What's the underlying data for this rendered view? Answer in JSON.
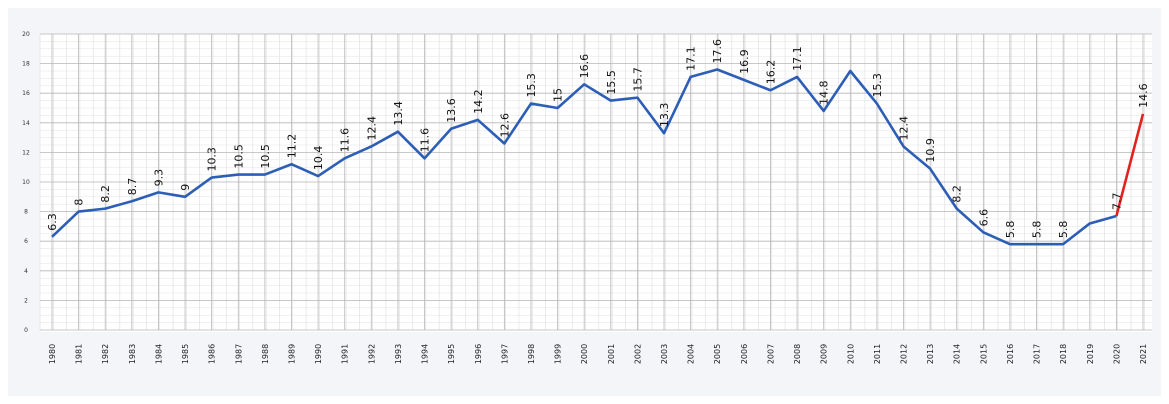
{
  "chart_data": {
    "type": "line",
    "categories": [
      "1980",
      "1981",
      "1982",
      "1983",
      "1984",
      "1985",
      "1986",
      "1987",
      "1988",
      "1989",
      "1990",
      "1991",
      "1992",
      "1993",
      "1994",
      "1995",
      "1996",
      "1997",
      "1998",
      "1999",
      "2000",
      "2001",
      "2002",
      "2003",
      "2004",
      "2005",
      "2006",
      "2007",
      "2008",
      "2009",
      "2010",
      "2011",
      "2012",
      "2013",
      "2014",
      "2015",
      "2016",
      "2017",
      "2018",
      "2019",
      "2020",
      "2021"
    ],
    "series": [
      {
        "color": "#2d5eb6",
        "last_segment_color": "#e3211e",
        "values": [
          6.3,
          8,
          8.2,
          8.7,
          9.3,
          9,
          10.3,
          10.5,
          10.5,
          11.2,
          10.4,
          11.6,
          12.4,
          13.4,
          11.6,
          13.6,
          14.2,
          12.6,
          15.3,
          15,
          16.6,
          15.5,
          15.7,
          13.3,
          17.1,
          17.6,
          16.9,
          16.2,
          17.1,
          14.8,
          17.5,
          15.3,
          12.4,
          10.9,
          8.2,
          6.6,
          5.8,
          5.8,
          5.8,
          7.2,
          7.7,
          14.6
        ],
        "value_labels": [
          "6.3",
          "8",
          "8.2",
          "8.7",
          "9.3",
          "9",
          "10.3",
          "10.5",
          "10.5",
          "11.2",
          "10.4",
          "11.6",
          "12.4",
          "13.4",
          "11.6",
          "13.6",
          "14.2",
          "12.6",
          "15.3",
          "15",
          "16.6",
          "15.5",
          "15.7",
          "13.3",
          "17.1",
          "17.6",
          "16.9",
          "16.2",
          "17.1",
          "14.8",
          null,
          "15.3",
          "12.4",
          "10.9",
          "8.2",
          "6.6",
          "5.8",
          "5.8",
          "5.8",
          null,
          "7.7",
          "14.6"
        ]
      }
    ],
    "ylim": [
      0,
      20
    ],
    "yticks": [
      0,
      2,
      4,
      6,
      8,
      10,
      12,
      14,
      16,
      18,
      20
    ],
    "grid": true
  }
}
